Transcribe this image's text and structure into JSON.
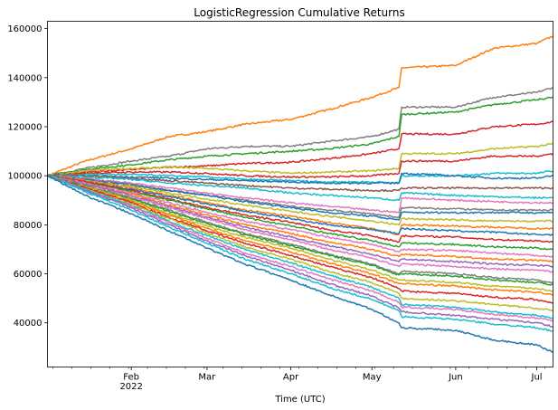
{
  "chart_data": {
    "type": "line",
    "title": "LogisticRegression Cumulative Returns",
    "xlabel": "Time (UTC)",
    "ylabel": "",
    "x_tick_labels": [
      "Feb",
      "Mar",
      "Apr",
      "May",
      "Jun",
      "Jul"
    ],
    "x_year_label": "2022",
    "x": [
      "2022-01-01",
      "2022-01-15",
      "2022-02-01",
      "2022-02-15",
      "2022-03-01",
      "2022-03-15",
      "2022-04-01",
      "2022-04-15",
      "2022-05-01",
      "2022-05-11",
      "2022-05-12",
      "2022-06-01",
      "2022-06-15",
      "2022-07-01",
      "2022-07-07"
    ],
    "xlim": [
      "2022-01-01",
      "2022-07-07"
    ],
    "ylim": [
      22000,
      163000
    ],
    "y_ticks": [
      40000,
      60000,
      80000,
      100000,
      120000,
      140000,
      160000
    ],
    "grid": false,
    "legend": "none",
    "series": [
      {
        "color": "#ff7f0e",
        "values": [
          100000,
          106000,
          111000,
          116000,
          118000,
          121000,
          123000,
          127000,
          132000,
          136000,
          144000,
          145000,
          152000,
          154000,
          157000
        ]
      },
      {
        "color": "#7f7f7f",
        "values": [
          100000,
          103000,
          106000,
          108000,
          111000,
          112000,
          112000,
          114000,
          116000,
          119000,
          128000,
          128000,
          132000,
          134000,
          136000
        ]
      },
      {
        "color": "#2ca02c",
        "values": [
          100000,
          102500,
          104500,
          106500,
          108000,
          109000,
          110000,
          111000,
          113000,
          116000,
          125000,
          126000,
          129000,
          131000,
          132000
        ]
      },
      {
        "color": "#d62728",
        "values": [
          100000,
          101500,
          102500,
          103500,
          104000,
          105000,
          105500,
          107000,
          109000,
          111000,
          117000,
          117000,
          120000,
          121000,
          122000
        ]
      },
      {
        "color": "#bcbd22",
        "values": [
          100000,
          102000,
          103000,
          103500,
          103000,
          102000,
          101000,
          101500,
          102000,
          103000,
          109000,
          109000,
          111000,
          112000,
          113000
        ]
      },
      {
        "color": "#d62728",
        "values": [
          100000,
          101000,
          101500,
          101500,
          101000,
          100000,
          99500,
          99500,
          100000,
          101000,
          106000,
          106000,
          108000,
          108000,
          109000
        ]
      },
      {
        "color": "#17becf",
        "values": [
          100000,
          100500,
          100500,
          100000,
          99500,
          98500,
          98000,
          97500,
          97500,
          97000,
          100000,
          100000,
          101000,
          101000,
          102000
        ]
      },
      {
        "color": "#1f77b4",
        "values": [
          100000,
          99800,
          99500,
          99000,
          98500,
          98000,
          97500,
          97000,
          97000,
          97000,
          101000,
          100000,
          99000,
          99000,
          100000
        ]
      },
      {
        "color": "#8c564b",
        "values": [
          100000,
          100000,
          99000,
          98000,
          97000,
          96000,
          95000,
          94500,
          94000,
          94000,
          95000,
          95000,
          95000,
          95000,
          95000
        ]
      },
      {
        "color": "#17becf",
        "values": [
          100000,
          99500,
          98500,
          97000,
          96000,
          95000,
          93000,
          92000,
          91000,
          90000,
          93000,
          92000,
          91500,
          91000,
          91000
        ]
      },
      {
        "color": "#e377c2",
        "values": [
          100000,
          99000,
          97000,
          95000,
          93000,
          91000,
          89000,
          87500,
          86000,
          85000,
          91000,
          90000,
          89500,
          89000,
          89000
        ]
      },
      {
        "color": "#7f7f7f",
        "values": [
          100000,
          98500,
          96500,
          94000,
          92000,
          90000,
          87500,
          86000,
          84500,
          83000,
          87000,
          86500,
          86000,
          86000,
          86000
        ]
      },
      {
        "color": "#1f77b4",
        "values": [
          100000,
          98500,
          96000,
          94000,
          92000,
          89500,
          87000,
          85000,
          83500,
          82000,
          85000,
          85000,
          85000,
          85000,
          85000
        ]
      },
      {
        "color": "#bcbd22",
        "values": [
          100000,
          98000,
          95500,
          93000,
          90500,
          88000,
          85500,
          83500,
          81500,
          80000,
          82500,
          82000,
          81500,
          81500,
          81500
        ]
      },
      {
        "color": "#ff7f0e",
        "values": [
          100000,
          98000,
          95000,
          92000,
          89000,
          86000,
          83500,
          81000,
          78500,
          76000,
          80000,
          79500,
          79000,
          78500,
          78500
        ]
      },
      {
        "color": "#1f77b4",
        "values": [
          100000,
          97500,
          94500,
          91500,
          88500,
          85500,
          82500,
          80000,
          78000,
          76500,
          78500,
          77500,
          77000,
          76000,
          76000
        ]
      },
      {
        "color": "#d62728",
        "values": [
          100000,
          97500,
          94000,
          90500,
          87000,
          84000,
          81000,
          78000,
          75500,
          73000,
          75500,
          75000,
          74000,
          73500,
          73000
        ]
      },
      {
        "color": "#2ca02c",
        "values": [
          100000,
          97000,
          93500,
          90000,
          86500,
          83000,
          79500,
          76500,
          73500,
          71000,
          72500,
          72000,
          71000,
          70500,
          70000
        ]
      },
      {
        "color": "#e377c2",
        "values": [
          100000,
          97000,
          93000,
          89000,
          85000,
          81500,
          78000,
          75000,
          72000,
          69000,
          70000,
          69500,
          68500,
          67500,
          67000
        ]
      },
      {
        "color": "#ff7f0e",
        "values": [
          100000,
          96500,
          92500,
          88000,
          84000,
          80000,
          76500,
          73000,
          70000,
          67000,
          68000,
          67000,
          66000,
          65500,
          65000
        ]
      },
      {
        "color": "#9467bd",
        "values": [
          100000,
          96500,
          92000,
          87500,
          83000,
          79000,
          75000,
          71500,
          68000,
          65000,
          66000,
          65000,
          64000,
          63500,
          63000
        ]
      },
      {
        "color": "#e377c2",
        "values": [
          100000,
          96000,
          91500,
          87000,
          82500,
          78000,
          74000,
          70000,
          66500,
          63000,
          64000,
          63000,
          62000,
          61500,
          61000
        ]
      },
      {
        "color": "#7f7f7f",
        "values": [
          100000,
          96000,
          91000,
          86000,
          81000,
          76500,
          72000,
          68000,
          64000,
          60000,
          61000,
          60000,
          58500,
          57500,
          56500
        ]
      },
      {
        "color": "#2ca02c",
        "values": [
          100000,
          95500,
          90500,
          85500,
          80500,
          76000,
          71500,
          67500,
          63500,
          59500,
          60000,
          59000,
          57500,
          56500,
          55500
        ]
      },
      {
        "color": "#bcbd22",
        "values": [
          100000,
          95500,
          90000,
          84500,
          79500,
          75000,
          70500,
          66000,
          61500,
          57500,
          57500,
          56500,
          55000,
          54000,
          53000
        ]
      },
      {
        "color": "#ff7f0e",
        "values": [
          100000,
          95000,
          89500,
          84000,
          78500,
          73500,
          69000,
          64500,
          60000,
          56000,
          56000,
          55000,
          53500,
          52500,
          51500
        ]
      },
      {
        "color": "#d62728",
        "values": [
          100000,
          95000,
          89000,
          83000,
          77500,
          72500,
          67500,
          63000,
          58500,
          54000,
          53000,
          52000,
          50500,
          49500,
          48000
        ]
      },
      {
        "color": "#bcbd22",
        "values": [
          100000,
          94500,
          88500,
          82500,
          76500,
          71000,
          66000,
          61000,
          56500,
          52000,
          50000,
          49000,
          47500,
          46000,
          45000
        ]
      },
      {
        "color": "#17becf",
        "values": [
          100000,
          94500,
          88000,
          81500,
          75500,
          70000,
          64500,
          59500,
          54500,
          50000,
          47500,
          46500,
          44500,
          43000,
          42000
        ]
      },
      {
        "color": "#e377c2",
        "values": [
          100000,
          94000,
          87500,
          81000,
          74500,
          68500,
          63000,
          58000,
          53000,
          48500,
          46500,
          45500,
          43500,
          42000,
          41000
        ]
      },
      {
        "color": "#9467bd",
        "values": [
          100000,
          94000,
          87000,
          80000,
          73500,
          67500,
          61500,
          56000,
          51000,
          46000,
          44500,
          43000,
          41500,
          40000,
          38500
        ]
      },
      {
        "color": "#17becf",
        "values": [
          100000,
          93500,
          86000,
          79000,
          72500,
          66000,
          60000,
          54500,
          49500,
          45000,
          42500,
          41500,
          39500,
          38000,
          36500
        ]
      },
      {
        "color": "#1f77b4",
        "values": [
          100000,
          92000,
          84500,
          77500,
          70500,
          64000,
          57500,
          51500,
          45500,
          40000,
          38000,
          37000,
          33000,
          31000,
          28000
        ]
      }
    ]
  }
}
